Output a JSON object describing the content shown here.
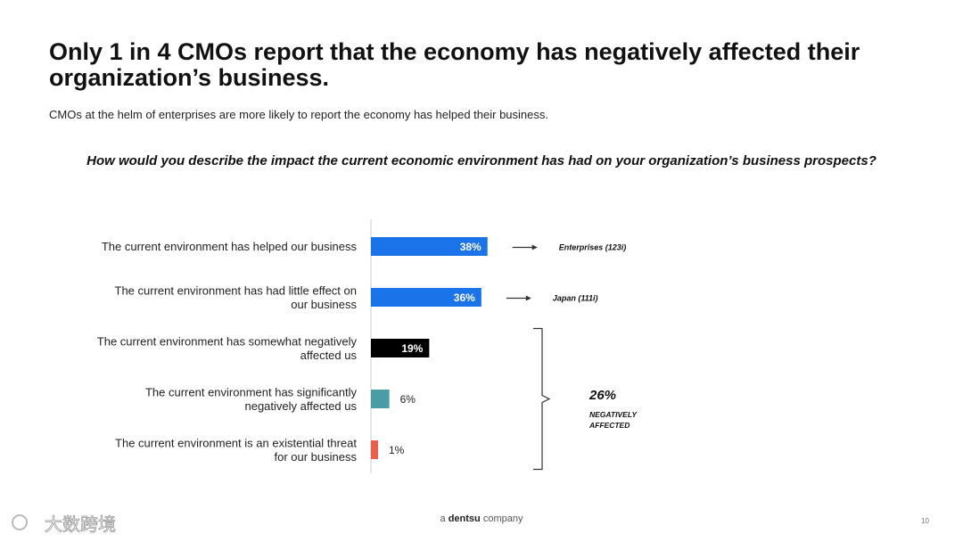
{
  "header": {
    "title": "Only 1 in 4 CMOs report that the economy has negatively affected their organization’s business.",
    "subtitle": "CMOs at the helm of enterprises are more likely to report the economy has helped their business.",
    "question": "How would you describe the impact the current economic environment has had on your organization’s business prospects?"
  },
  "chart_data": {
    "type": "bar",
    "orientation": "horizontal",
    "categories": [
      "The current environment has helped our business",
      "The current environment has had little effect on our business",
      "The current environment has somewhat negatively affected us",
      "The current environment has significantly negatively affected us",
      "The current environment is an existential threat for our business"
    ],
    "values": [
      38,
      36,
      19,
      6,
      1
    ],
    "value_labels": [
      "38%",
      "36%",
      "19%",
      "6%",
      "1%"
    ],
    "bar_colors": [
      "#1a73e8",
      "#1a73e8",
      "#000000",
      "#4a9ca6",
      "#e8604c"
    ],
    "xlim": [
      0,
      100
    ],
    "annotations": [
      {
        "bar_index": 0,
        "text": "Enterprises (123i)"
      },
      {
        "bar_index": 1,
        "text": "Japan (111i)"
      }
    ],
    "bracket": {
      "from_bar": 2,
      "to_bar": 4,
      "value": "26%",
      "label_lines": [
        "NEGATIVELY",
        "AFFECTED"
      ]
    }
  },
  "footer": {
    "brand_prefix": "a",
    "brand_name": "dentsu",
    "brand_suffix": "company",
    "page_number": "10"
  },
  "watermark": {
    "text": "大数跨境"
  }
}
